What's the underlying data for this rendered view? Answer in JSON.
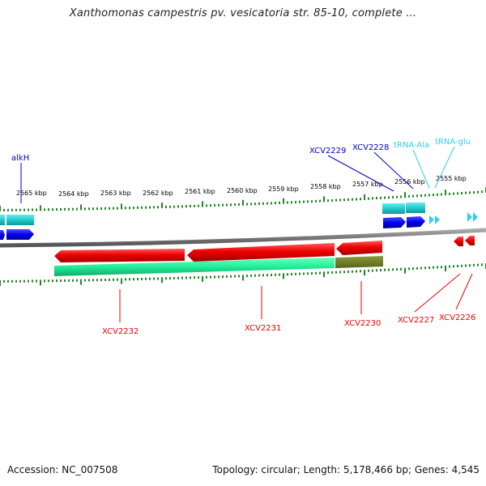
{
  "title": "Xanthomonas campestris pv. vesicatoria str. 85-10, complete ...",
  "footer": {
    "accession": "Accession: NC_007508",
    "topology": "Topology: circular; Length: 5,178,466 bp; Genes: 4,545"
  },
  "colors": {
    "forward_cds": "#0000ee",
    "reverse_cds": "#ee0000",
    "trna": "#33ccee",
    "forward_gene_bar": "#22cccc",
    "reverse_gene_bar": "#22ee99",
    "dark_gene_bar": "#6b7b22",
    "ticks": "#228822",
    "backbone": "#777777"
  },
  "scale_labels": [
    "2565 kbp",
    "2564 kbp",
    "2563 kbp",
    "2562 kbp",
    "2561 kbp",
    "2560 kbp",
    "2559 kbp",
    "2558 kbp",
    "2557 kbp",
    "2556 kbp",
    "2555 kbp"
  ],
  "forward_labels": [
    "alkH",
    "XCV2229",
    "XCV2228",
    "tRNA-Ala",
    "tRNA-glu"
  ],
  "reverse_labels": [
    "XCV2232",
    "XCV2231",
    "XCV2230",
    "XCV2227",
    "XCV2226"
  ]
}
